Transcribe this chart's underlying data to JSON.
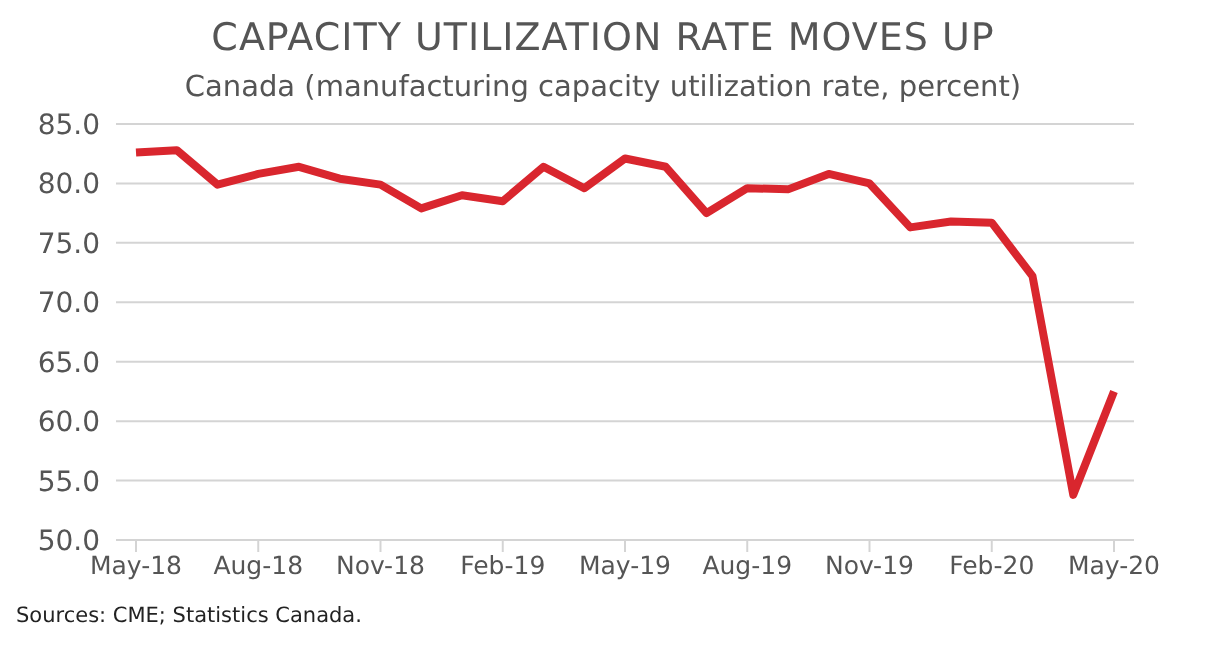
{
  "chart_data": {
    "type": "line",
    "title": "CAPACITY UTILIZATION RATE MOVES UP",
    "subtitle": "Canada (manufacturing capacity utilization rate, percent)",
    "categories": [
      "May-18",
      null,
      null,
      "Aug-18",
      null,
      null,
      "Nov-18",
      null,
      null,
      "Feb-19",
      null,
      null,
      "May-19",
      null,
      null,
      "Aug-19",
      null,
      null,
      "Nov-19",
      null,
      null,
      "Feb-20",
      null,
      null,
      "May-20"
    ],
    "series": [
      {
        "color": "#d9262e",
        "values": [
          82.6,
          82.8,
          79.9,
          80.8,
          81.4,
          80.4,
          79.9,
          77.9,
          79.0,
          78.5,
          81.4,
          79.6,
          82.1,
          81.4,
          77.5,
          79.6,
          79.5,
          80.8,
          80.0,
          76.3,
          76.8,
          76.7,
          72.2,
          53.8,
          62.5
        ]
      }
    ],
    "ylim": [
      50,
      85
    ],
    "yticks": [
      {
        "value": 50,
        "label": "50.0"
      },
      {
        "value": 55,
        "label": "55.0"
      },
      {
        "value": 60,
        "label": "60.0"
      },
      {
        "value": 65,
        "label": "65.0"
      },
      {
        "value": 70,
        "label": "70.0"
      },
      {
        "value": 75,
        "label": "75.0"
      },
      {
        "value": 80,
        "label": "80.0"
      },
      {
        "value": 85,
        "label": "85.0"
      }
    ],
    "grid": "y",
    "legend": false,
    "marker": "none",
    "line_style": "solid",
    "annotations": [
      "Sources: CME; Statistics Canada."
    ]
  }
}
